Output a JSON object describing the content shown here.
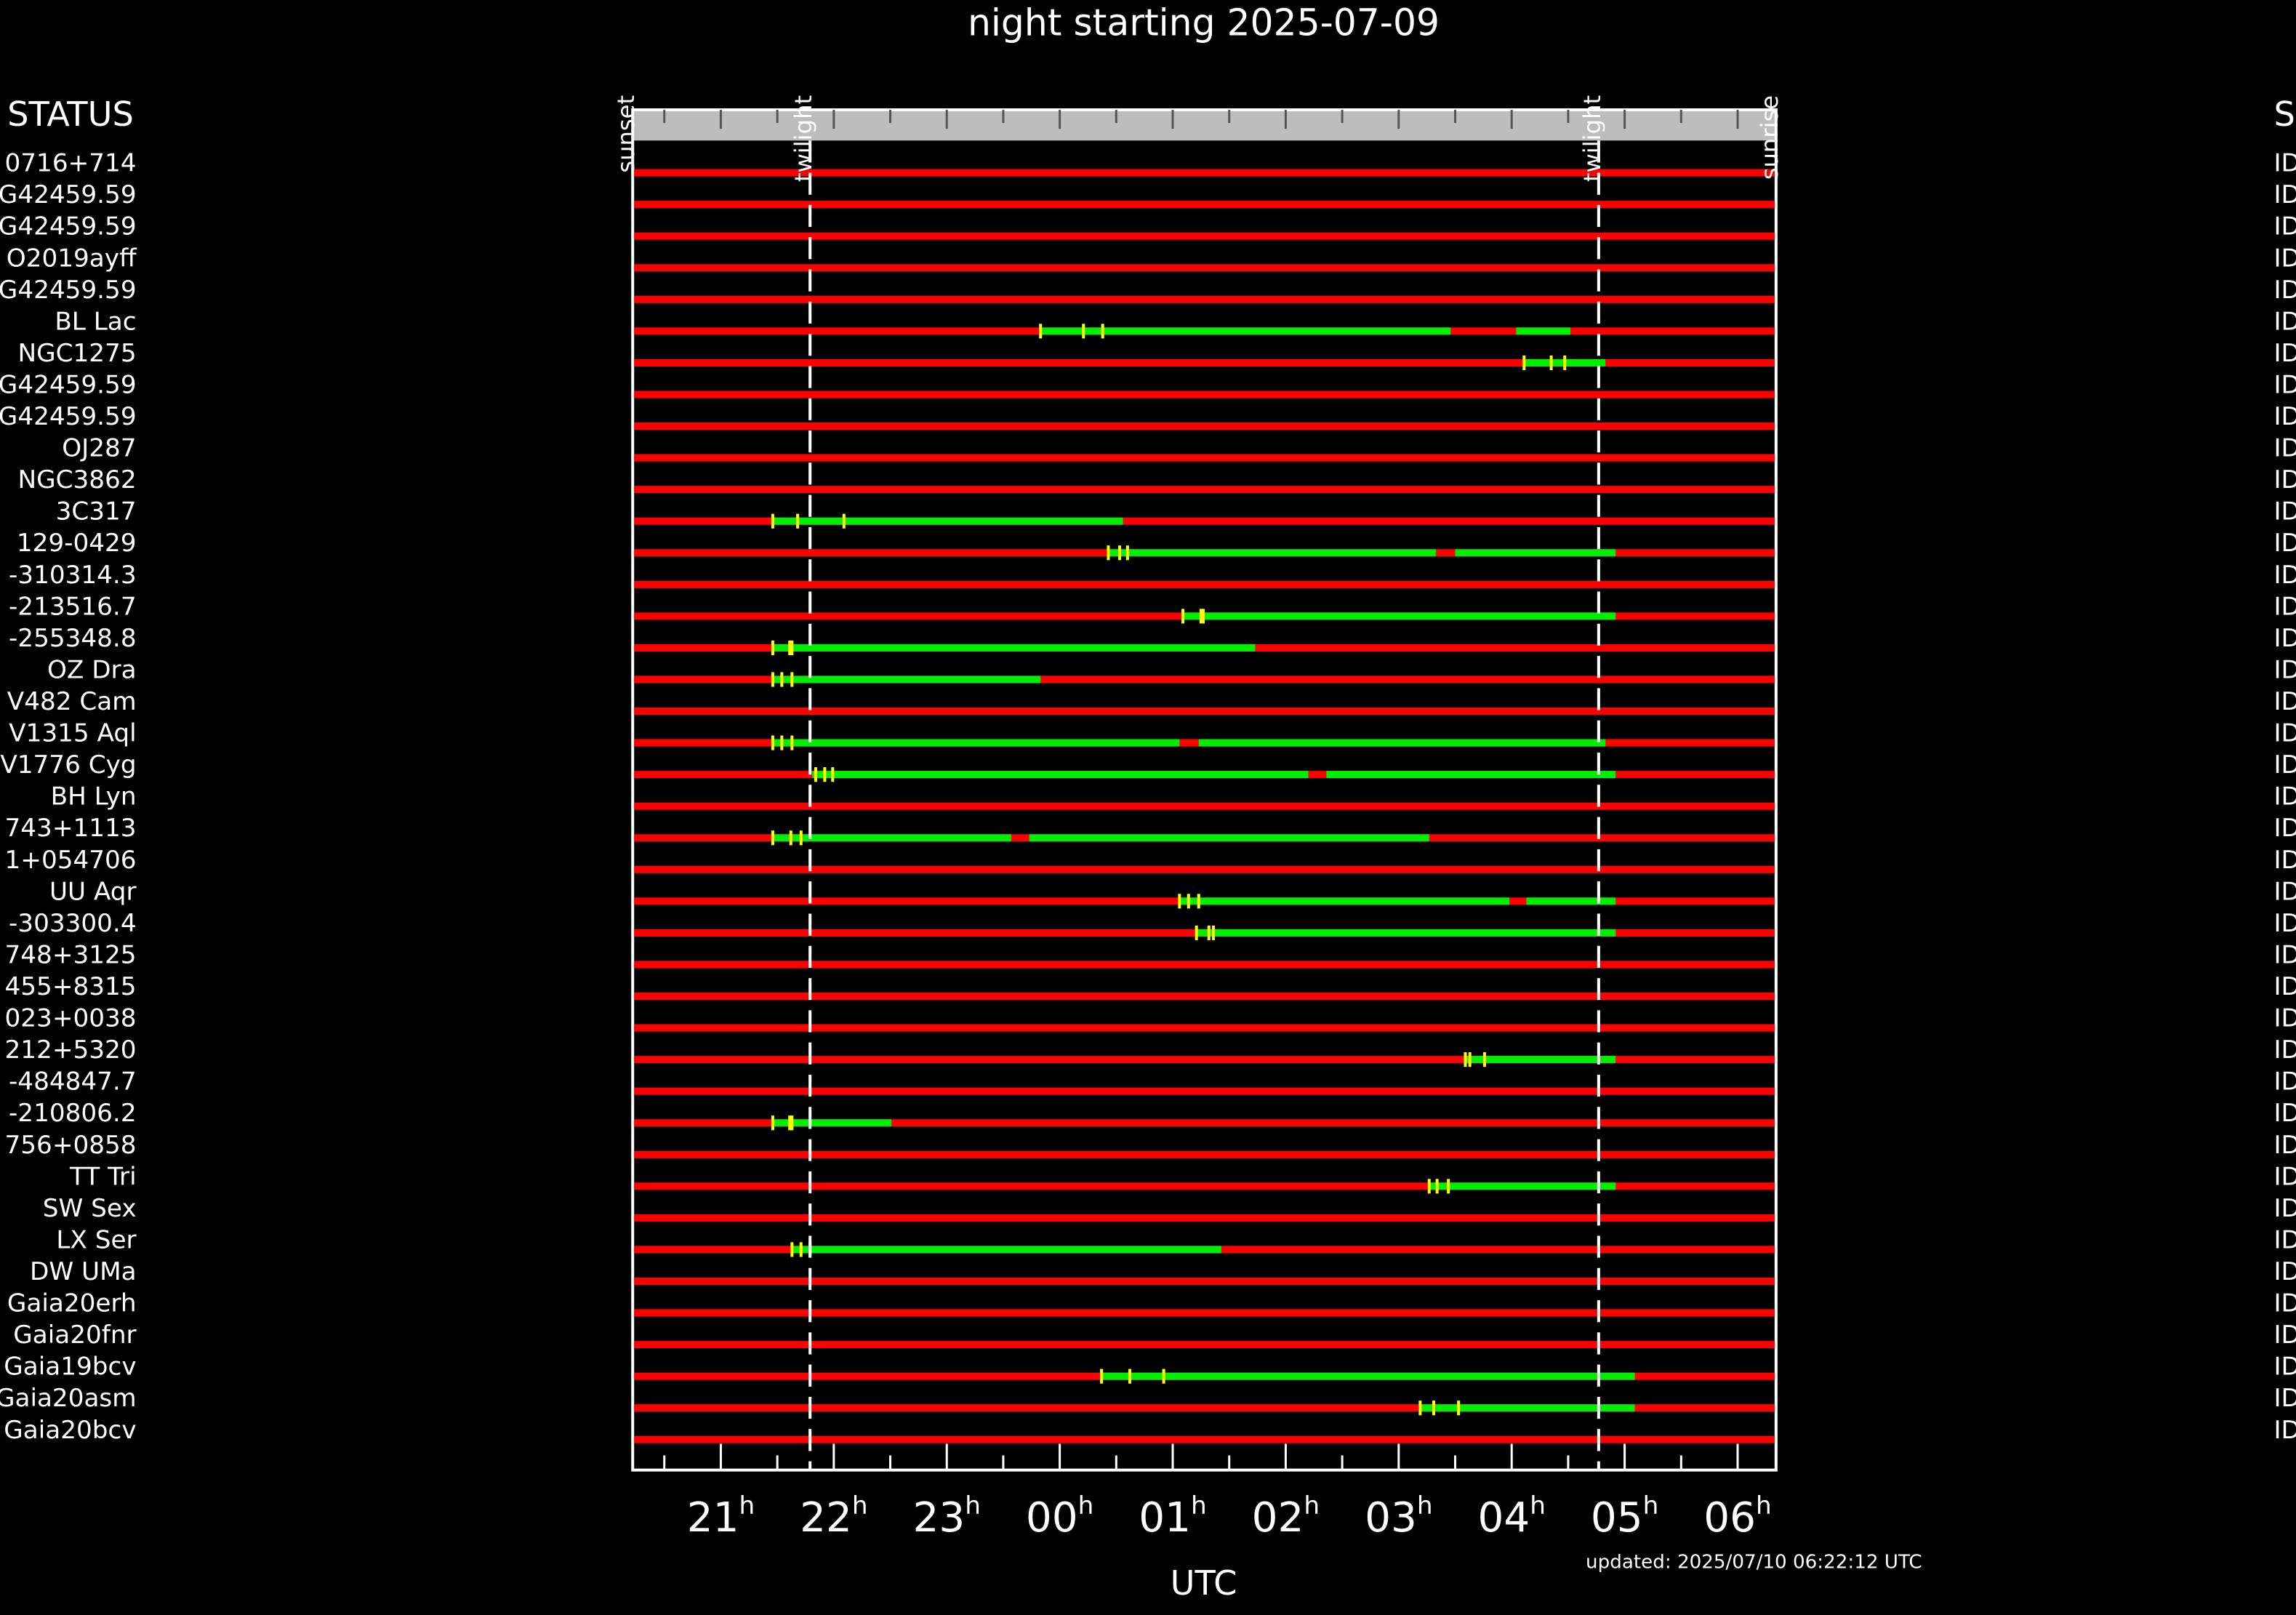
{
  "chart_data": {
    "type": "timeline",
    "title": "night starting 2025-07-09",
    "x_label": "UTC",
    "left_header": "STATUS",
    "right_header": "S",
    "footer": "updated: 2025/07/10 06:22:12 UTC",
    "xlim": [
      20.22,
      30.34
    ],
    "xticks": [
      {
        "value": 21,
        "label": "21h"
      },
      {
        "value": 22,
        "label": "22h"
      },
      {
        "value": 23,
        "label": "23h"
      },
      {
        "value": 24,
        "label": "00h"
      },
      {
        "value": 25,
        "label": "01h"
      },
      {
        "value": 26,
        "label": "02h"
      },
      {
        "value": 27,
        "label": "03h"
      },
      {
        "value": 28,
        "label": "04h"
      },
      {
        "value": 29,
        "label": "05h"
      },
      {
        "value": 30,
        "label": "06h"
      }
    ],
    "xticks_minor": [
      20.5,
      21.5,
      22.5,
      23.5,
      24.5,
      25.5,
      26.5,
      27.5,
      28.5,
      29.5
    ],
    "markers": [
      {
        "label": "sunset",
        "x": 20.22,
        "dashed": false
      },
      {
        "label": "twilight",
        "x": 21.79,
        "dashed": true
      },
      {
        "label": "twilight",
        "x": 28.77,
        "dashed": true
      },
      {
        "label": "sunrise",
        "x": 30.34,
        "dashed": false
      }
    ],
    "colors": {
      "unobservable": "#ff0000",
      "observable": "#00ee00",
      "mark": "#ffff00"
    },
    "rows": [
      {
        "name": "0716+714",
        "status": "ID",
        "windows": [],
        "marks": []
      },
      {
        "name": "G42459.59",
        "status": "ID",
        "windows": [],
        "marks": []
      },
      {
        "name": "G42459.59",
        "status": "ID",
        "windows": [],
        "marks": []
      },
      {
        "name": "O2019ayff",
        "status": "ID",
        "windows": [],
        "marks": []
      },
      {
        "name": "G42459.59",
        "status": "ID",
        "windows": [],
        "marks": []
      },
      {
        "name": "BL Lac",
        "status": "ID",
        "windows": [
          [
            23.83,
            27.46
          ],
          [
            28.04,
            28.52
          ]
        ],
        "marks": [
          23.83,
          24.21,
          24.38
        ]
      },
      {
        "name": "NGC1275",
        "status": "ID",
        "windows": [
          [
            28.11,
            28.83
          ]
        ],
        "marks": [
          28.11,
          28.35,
          28.47
        ]
      },
      {
        "name": "G42459.59",
        "status": "ID",
        "windows": [],
        "marks": []
      },
      {
        "name": "G42459.59",
        "status": "ID",
        "windows": [],
        "marks": []
      },
      {
        "name": "OJ287",
        "status": "ID",
        "windows": [],
        "marks": []
      },
      {
        "name": "NGC3862",
        "status": "ID",
        "windows": [],
        "marks": []
      },
      {
        "name": "3C317",
        "status": "ID",
        "windows": [
          [
            21.46,
            24.56
          ]
        ],
        "marks": [
          21.46,
          21.68,
          22.09
        ]
      },
      {
        "name": "129-0429",
        "status": "ID",
        "windows": [
          [
            24.43,
            27.33
          ],
          [
            27.5,
            28.92
          ]
        ],
        "marks": [
          24.43,
          24.53,
          24.6
        ]
      },
      {
        "name": "-310314.3",
        "status": "ID",
        "windows": [],
        "marks": []
      },
      {
        "name": "-213516.7",
        "status": "ID",
        "windows": [
          [
            25.09,
            28.92
          ]
        ],
        "marks": [
          25.09,
          25.25,
          25.27
        ]
      },
      {
        "name": "-255348.8",
        "status": "ID",
        "windows": [
          [
            21.46,
            25.73
          ]
        ],
        "marks": [
          21.46,
          21.61,
          21.63
        ]
      },
      {
        "name": "OZ Dra",
        "status": "ID",
        "windows": [
          [
            21.46,
            23.83
          ]
        ],
        "marks": [
          21.46,
          21.54,
          21.63
        ]
      },
      {
        "name": "V482 Cam",
        "status": "ID",
        "windows": [],
        "marks": []
      },
      {
        "name": "V1315 Aql",
        "status": "ID",
        "windows": [
          [
            21.46,
            25.06
          ],
          [
            25.23,
            28.83
          ]
        ],
        "marks": [
          21.46,
          21.54,
          21.63
        ]
      },
      {
        "name": "V1776 Cyg",
        "status": "ID",
        "windows": [
          [
            21.81,
            26.2
          ],
          [
            26.36,
            28.92
          ]
        ],
        "marks": [
          21.84,
          21.92,
          21.99
        ]
      },
      {
        "name": "BH Lyn",
        "status": "ID",
        "windows": [],
        "marks": []
      },
      {
        "name": "743+1113",
        "status": "ID",
        "windows": [
          [
            21.46,
            23.57
          ],
          [
            23.73,
            27.27
          ]
        ],
        "marks": [
          21.46,
          21.62,
          21.71
        ]
      },
      {
        "name": "1+054706",
        "status": "ID",
        "windows": [],
        "marks": []
      },
      {
        "name": "UU Aqr",
        "status": "ID",
        "windows": [
          [
            25.06,
            27.98
          ],
          [
            28.13,
            28.92
          ]
        ],
        "marks": [
          25.06,
          25.14,
          25.23
        ]
      },
      {
        "name": "-303300.4",
        "status": "ID",
        "windows": [
          [
            25.21,
            28.92
          ]
        ],
        "marks": [
          25.21,
          25.32,
          25.36
        ]
      },
      {
        "name": "748+3125",
        "status": "ID",
        "windows": [],
        "marks": []
      },
      {
        "name": "455+8315",
        "status": "ID",
        "windows": [],
        "marks": []
      },
      {
        "name": "023+0038",
        "status": "ID",
        "windows": [],
        "marks": []
      },
      {
        "name": "212+5320",
        "status": "ID",
        "windows": [
          [
            27.59,
            28.92
          ]
        ],
        "marks": [
          27.59,
          27.63,
          27.76
        ]
      },
      {
        "name": "-484847.7",
        "status": "ID",
        "windows": [],
        "marks": []
      },
      {
        "name": "-210806.2",
        "status": "ID",
        "windows": [
          [
            21.46,
            22.51
          ]
        ],
        "marks": [
          21.46,
          21.61,
          21.63
        ]
      },
      {
        "name": "756+0858",
        "status": "ID",
        "windows": [],
        "marks": []
      },
      {
        "name": "TT Tri",
        "status": "ID",
        "windows": [
          [
            27.27,
            28.92
          ]
        ],
        "marks": [
          27.27,
          27.34,
          27.44
        ]
      },
      {
        "name": "SW Sex",
        "status": "ID",
        "windows": [],
        "marks": []
      },
      {
        "name": "LX Ser",
        "status": "ID",
        "windows": [
          [
            21.63,
            25.43
          ]
        ],
        "marks": [
          21.63,
          21.71,
          21.79
        ]
      },
      {
        "name": "DW UMa",
        "status": "ID",
        "windows": [],
        "marks": []
      },
      {
        "name": "Gaia20erh",
        "status": "ID",
        "windows": [],
        "marks": []
      },
      {
        "name": "Gaia20fnr",
        "status": "ID",
        "windows": [],
        "marks": []
      },
      {
        "name": "Gaia19bcv",
        "status": "ID",
        "windows": [
          [
            24.37,
            29.09
          ]
        ],
        "marks": [
          24.37,
          24.62,
          24.92
        ]
      },
      {
        "name": "Gaia20asm",
        "status": "ID",
        "windows": [
          [
            27.19,
            29.09
          ]
        ],
        "marks": [
          27.19,
          27.31,
          27.53
        ]
      },
      {
        "name": "Gaia20bcv",
        "status": "ID",
        "windows": [],
        "marks": []
      }
    ]
  }
}
